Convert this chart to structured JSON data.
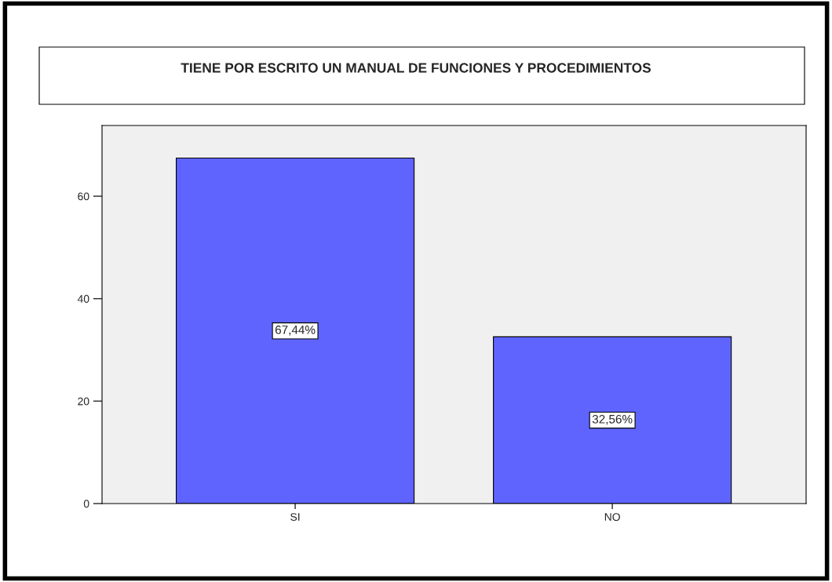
{
  "chart_data": {
    "type": "bar",
    "title": "TIENE POR ESCRITO UN MANUAL DE FUNCIONES Y PROCEDIMIENTOS",
    "categories": [
      "SI",
      "NO"
    ],
    "values": [
      67.44,
      32.56
    ],
    "value_labels": [
      "67,44%",
      "32,56%"
    ],
    "color": "#5f64ff",
    "ylim": [
      0,
      73.8
    ],
    "yticks": [
      0,
      20,
      40,
      60
    ],
    "grid": false
  }
}
